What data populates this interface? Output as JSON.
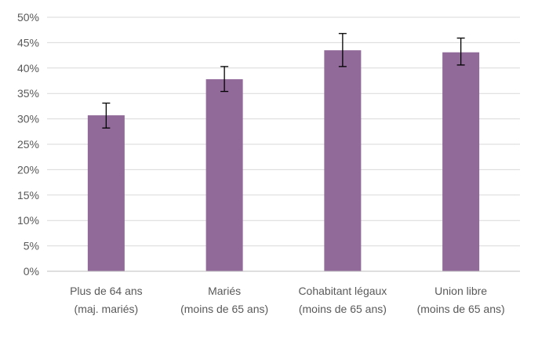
{
  "chart_data": {
    "type": "bar",
    "title": "",
    "xlabel": "",
    "ylabel": "",
    "ylim": [
      0,
      50
    ],
    "y_ticks": [
      "0%",
      "5%",
      "10%",
      "15%",
      "20%",
      "25%",
      "30%",
      "35%",
      "40%",
      "45%",
      "50%"
    ],
    "grid": true,
    "legend": "none",
    "bar_color": "#916a9a",
    "categories": [
      [
        "Plus de 64 ans",
        "(maj. mariés)"
      ],
      [
        "Mariés",
        "(moins de 65 ans)"
      ],
      [
        "Cohabitant légaux",
        "(moins de 65 ans)"
      ],
      [
        "Union libre",
        "(moins de 65 ans)"
      ]
    ],
    "values": [
      30.7,
      37.8,
      43.5,
      43.1
    ],
    "error_bars": [
      [
        28.2,
        33.1
      ],
      [
        35.4,
        40.3
      ],
      [
        40.3,
        46.8
      ],
      [
        40.6,
        45.9
      ]
    ]
  }
}
